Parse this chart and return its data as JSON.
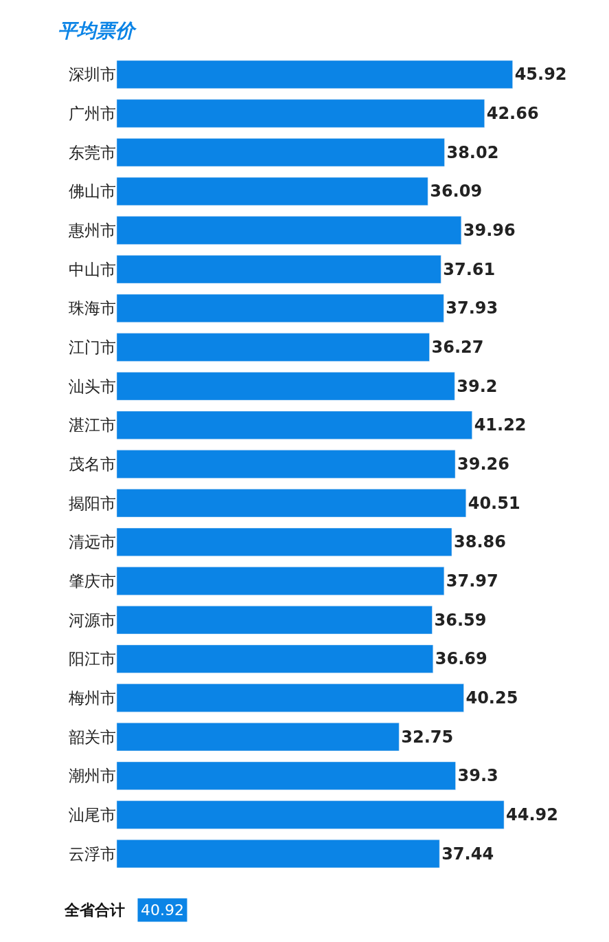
{
  "chart_data": {
    "type": "bar",
    "orientation": "horizontal",
    "title": "平均票价",
    "categories": [
      "深圳市",
      "广州市",
      "东莞市",
      "佛山市",
      "惠州市",
      "中山市",
      "珠海市",
      "江门市",
      "汕头市",
      "湛江市",
      "茂名市",
      "揭阳市",
      "清远市",
      "肇庆市",
      "河源市",
      "阳江市",
      "梅州市",
      "韶关市",
      "潮州市",
      "汕尾市",
      "云浮市"
    ],
    "values": [
      45.92,
      42.66,
      38.02,
      36.09,
      39.96,
      37.61,
      37.93,
      36.27,
      39.2,
      41.22,
      39.26,
      40.51,
      38.86,
      37.97,
      36.59,
      36.69,
      40.25,
      32.75,
      39.3,
      44.92,
      37.44
    ],
    "color": "#0b84e6",
    "tick_labels": "y",
    "data_labels": true,
    "legend": false,
    "annotations": [
      "全省合计",
      "40.92"
    ]
  }
}
